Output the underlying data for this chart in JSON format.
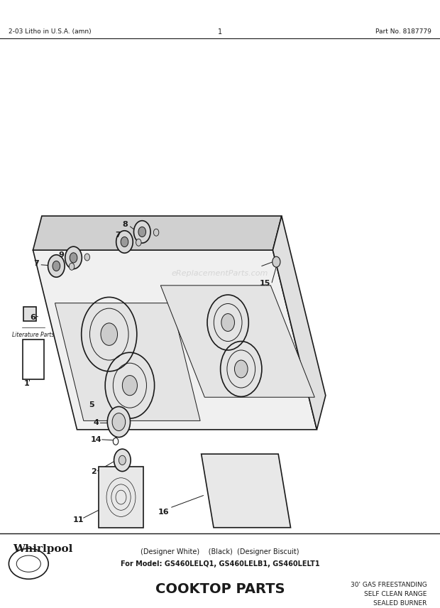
{
  "title": "COOKTOP PARTS",
  "subtitle_line1": "For Model: GS460LELQ1, GS460LELB1, GS460LELT1",
  "subtitle_line2": "(Designer White)    (Black)  (Designer Biscuit)",
  "top_right_text": "30' GAS FREESTANDING\nSELF CLEAN RANGE\nSEALED BURNER",
  "whirlpool_text": "Whirlpool",
  "footer_left": "2-03 Litho in U.S.A. (amn)",
  "footer_center": "1",
  "footer_right": "Part No. 8187779",
  "watermark": "eReplacementParts.com",
  "bg_color": "#ffffff",
  "drawing_color": "#1a1a1a"
}
